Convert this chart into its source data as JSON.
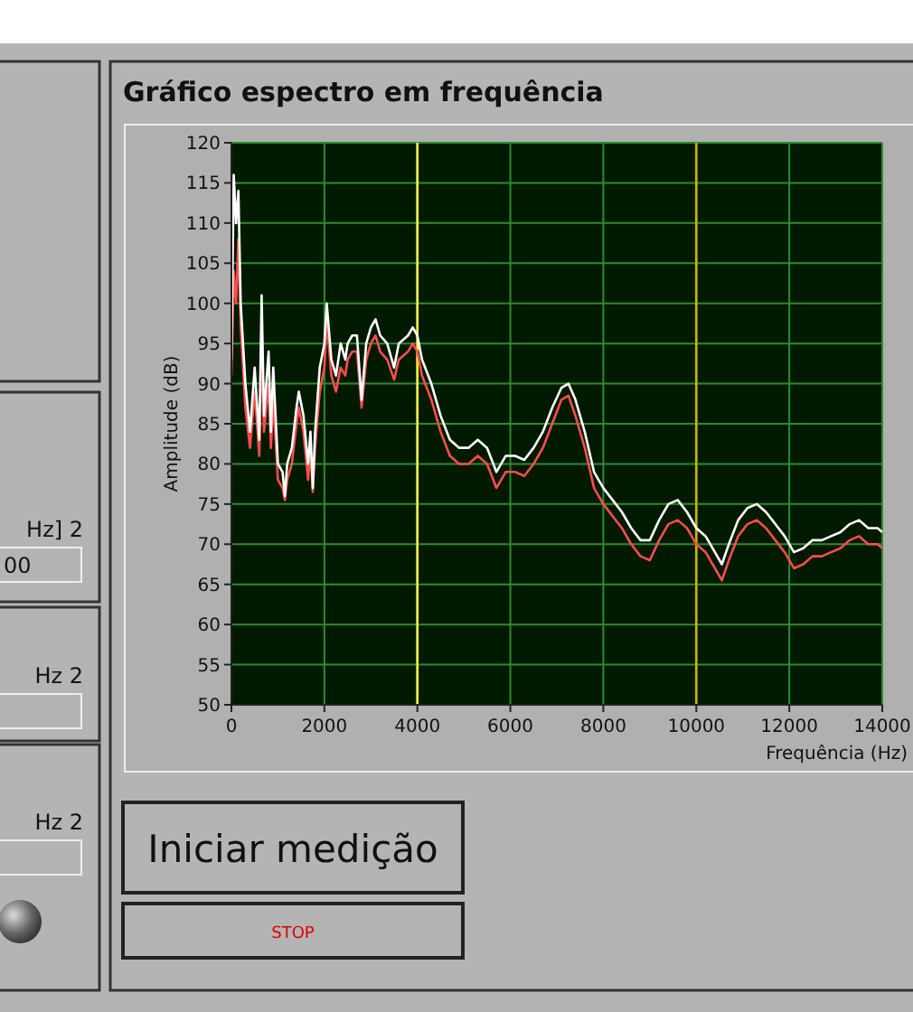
{
  "chart_data": {
    "type": "line",
    "title": "Gráfico espectro em frequência",
    "xlabel": "Frequência (Hz)",
    "ylabel": "Amplitude (dB)",
    "xlim": [
      0,
      14000
    ],
    "xticks": [
      0,
      2000,
      4000,
      6000,
      8000,
      10000,
      12000,
      14000
    ],
    "ylim": [
      50,
      120
    ],
    "yticks": [
      50,
      55,
      60,
      65,
      70,
      75,
      80,
      85,
      90,
      95,
      100,
      105,
      110,
      115,
      120
    ],
    "grid": true,
    "marker": "none",
    "line_style": "solid",
    "ref_lines": [
      {
        "axis": "x",
        "value": 4000,
        "color": "#ffff40"
      },
      {
        "axis": "x",
        "value": 10000,
        "color": "#c8b400"
      }
    ],
    "annotations": [
      "Iniciar medição",
      "STOP",
      "Hz] 2",
      "00",
      "Hz 2",
      "Hz 2"
    ],
    "series": [
      {
        "color": "#ffffff",
        "x": [
          0,
          50,
          100,
          150,
          200,
          300,
          400,
          500,
          600,
          650,
          700,
          800,
          850,
          900,
          1000,
          1100,
          1150,
          1200,
          1300,
          1400,
          1450,
          1550,
          1650,
          1700,
          1750,
          1800,
          1900,
          2000,
          2050,
          2150,
          2250,
          2350,
          2450,
          2500,
          2600,
          2700,
          2800,
          2900,
          3000,
          3100,
          3200,
          3350,
          3500,
          3600,
          3800,
          3900,
          4000,
          4100,
          4300,
          4500,
          4700,
          4900,
          5100,
          5300,
          5500,
          5700,
          5900,
          6100,
          6300,
          6500,
          6700,
          6900,
          7100,
          7250,
          7400,
          7600,
          7800,
          8000,
          8200,
          8400,
          8600,
          8800,
          9000,
          9200,
          9400,
          9600,
          9800,
          10000,
          10200,
          10400,
          10550,
          10700,
          10900,
          11100,
          11300,
          11500,
          11700,
          11900,
          12100,
          12300,
          12500,
          12700,
          12900,
          13100,
          13300,
          13500,
          13700,
          13900,
          14000
        ],
        "values": [
          93,
          116,
          110,
          114,
          100,
          90,
          84,
          92,
          83,
          101,
          86,
          94,
          84,
          92,
          80,
          79,
          76,
          80,
          82,
          87,
          89,
          86,
          80,
          84,
          77,
          84,
          92,
          95,
          100,
          93,
          91,
          95,
          93,
          95,
          96,
          96,
          88,
          95,
          97,
          98,
          96,
          95,
          92,
          95,
          96,
          97,
          96,
          93,
          90,
          86,
          83,
          82,
          82,
          83,
          82,
          79,
          81,
          81,
          80.5,
          82,
          84,
          87,
          89.5,
          90,
          88,
          84,
          79,
          77,
          75.5,
          74,
          72,
          70.5,
          70.5,
          73,
          75,
          75.5,
          74,
          72,
          71,
          69,
          67.5,
          70,
          73,
          74.5,
          75,
          74,
          72.5,
          71,
          69,
          69.5,
          70.5,
          70.5,
          71,
          71.5,
          72.5,
          73,
          72,
          72,
          71.5
        ]
      },
      {
        "color": "#ff4d4d",
        "x": [
          0,
          50,
          100,
          150,
          200,
          300,
          400,
          500,
          600,
          650,
          700,
          800,
          850,
          900,
          1000,
          1100,
          1150,
          1200,
          1300,
          1400,
          1450,
          1550,
          1650,
          1700,
          1750,
          1800,
          1900,
          2000,
          2050,
          2150,
          2250,
          2350,
          2450,
          2500,
          2600,
          2700,
          2800,
          2900,
          3000,
          3100,
          3200,
          3350,
          3500,
          3600,
          3800,
          3900,
          4000,
          4100,
          4300,
          4500,
          4700,
          4900,
          5100,
          5300,
          5500,
          5700,
          5900,
          6100,
          6300,
          6500,
          6700,
          6900,
          7100,
          7250,
          7400,
          7600,
          7800,
          8000,
          8200,
          8400,
          8600,
          8800,
          9000,
          9200,
          9400,
          9600,
          9800,
          10000,
          10200,
          10400,
          10550,
          10700,
          10900,
          11100,
          11300,
          11500,
          11700,
          11900,
          12100,
          12300,
          12500,
          12700,
          12900,
          13100,
          13300,
          13500,
          13700,
          13900,
          14000
        ],
        "values": [
          91,
          104,
          100,
          108,
          97,
          87,
          82,
          89,
          81,
          96,
          84,
          90,
          82,
          88,
          78,
          77,
          75.5,
          78,
          80,
          85,
          87,
          84,
          78,
          82,
          76.5,
          82,
          89,
          92,
          98,
          91,
          89,
          92,
          91,
          93,
          94,
          94,
          87,
          93,
          95,
          96,
          94,
          93,
          90.5,
          93,
          94,
          95,
          94,
          91,
          88,
          84,
          81,
          80,
          80,
          81,
          80,
          77,
          79,
          79,
          78.5,
          80,
          82,
          85,
          88,
          88.5,
          86,
          82,
          77,
          75,
          73.5,
          72,
          70,
          68.5,
          68,
          70.5,
          72.5,
          73,
          72,
          70,
          69,
          67,
          65.5,
          68,
          71,
          72.5,
          73,
          72,
          70.5,
          69,
          67,
          67.5,
          68.5,
          68.5,
          69,
          69.5,
          70.5,
          71,
          70,
          70,
          69.5
        ]
      }
    ]
  }
}
